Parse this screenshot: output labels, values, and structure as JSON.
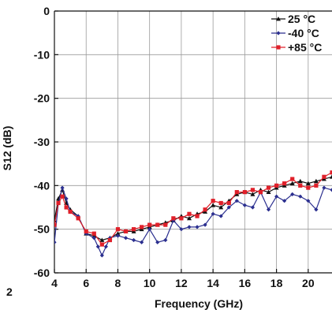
{
  "chart_data": {
    "type": "line",
    "title": "",
    "xlabel": "Frequency (GHz)",
    "ylabel": "S12 (dB)",
    "xlim": [
      4,
      21.5
    ],
    "ylim": [
      -60,
      0
    ],
    "x_ticks": [
      4,
      6,
      8,
      10,
      12,
      14,
      16,
      18,
      20
    ],
    "y_ticks": [
      0,
      -10,
      -20,
      -30,
      -40,
      -50,
      -60
    ],
    "grid": true,
    "legend_position": "top-right",
    "stray_label": "2",
    "series": [
      {
        "name": "25 °C",
        "color": "#111111",
        "marker": "triangle",
        "x": [
          4,
          4.25,
          4.5,
          4.75,
          5,
          5.5,
          6,
          6.5,
          7,
          7.5,
          8,
          8.5,
          9,
          9.5,
          10,
          10.5,
          11,
          11.5,
          12,
          12.5,
          13,
          13.5,
          14,
          14.5,
          15,
          15.5,
          16,
          16.5,
          17,
          17.5,
          18,
          18.5,
          19,
          19.5,
          20,
          20.5,
          21,
          21.5
        ],
        "y": [
          -48,
          -43,
          -41,
          -44,
          -45.5,
          -47,
          -51,
          -51.5,
          -52.5,
          -52,
          -51,
          -50.5,
          -50.5,
          -50,
          -49.5,
          -49,
          -48.5,
          -48,
          -47,
          -47.5,
          -46.5,
          -46,
          -44.5,
          -45,
          -43.5,
          -42,
          -41.5,
          -42,
          -41,
          -41.5,
          -40.5,
          -40,
          -39.5,
          -39,
          -39.5,
          -39,
          -38.5,
          -38
        ]
      },
      {
        "name": "-40 °C",
        "color": "#2b2f8f",
        "marker": "diamond",
        "x": [
          4,
          4.25,
          4.5,
          4.75,
          5,
          5.5,
          6,
          6.5,
          6.75,
          7,
          7.25,
          7.5,
          8,
          8.5,
          9,
          9.5,
          10,
          10.5,
          11,
          11.5,
          12,
          12.5,
          13,
          13.5,
          14,
          14.5,
          15,
          15.5,
          16,
          16.5,
          17,
          17.5,
          18,
          18.5,
          19,
          19.5,
          20,
          20.5,
          21,
          21.5
        ],
        "y": [
          -53,
          -44,
          -40.5,
          -43,
          -46,
          -47,
          -51,
          -52,
          -54,
          -56,
          -54,
          -52,
          -51.5,
          -52,
          -52.5,
          -53,
          -50,
          -53,
          -52.5,
          -48,
          -50,
          -49.5,
          -49.5,
          -49,
          -46.5,
          -47,
          -45,
          -43.5,
          -44.5,
          -45,
          -41.5,
          -45.5,
          -42.5,
          -43.5,
          -42,
          -42.5,
          -43.5,
          -45.5,
          -40.5,
          -41
        ]
      },
      {
        "name": "+85 °C",
        "color": "#e0202a",
        "marker": "square",
        "x": [
          4,
          4.25,
          4.5,
          4.75,
          5,
          5.5,
          6,
          6.5,
          7,
          7.5,
          8,
          8.5,
          9,
          9.5,
          10,
          10.5,
          11,
          11.5,
          12,
          12.5,
          13,
          13.5,
          14,
          14.5,
          15,
          15.5,
          16,
          16.5,
          17,
          17.5,
          18,
          18.5,
          19,
          19.5,
          20,
          20.5,
          21,
          21.5
        ],
        "y": [
          -49,
          -44,
          -42.5,
          -45,
          -46,
          -47.5,
          -50.5,
          -51,
          -53.5,
          -52.5,
          -50,
          -50.5,
          -50,
          -49.5,
          -49,
          -49,
          -49,
          -47.5,
          -47.5,
          -46.5,
          -47,
          -45.5,
          -43.5,
          -44,
          -44,
          -41.5,
          -41.5,
          -41,
          -41.5,
          -40.5,
          -40,
          -39.5,
          -38.5,
          -40,
          -40.5,
          -40,
          -38,
          -37
        ]
      }
    ]
  }
}
